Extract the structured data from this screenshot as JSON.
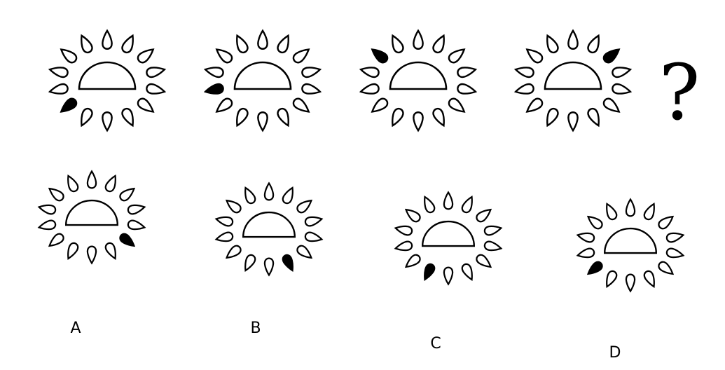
{
  "question_mark": "?",
  "colors": {
    "stroke": "#000000",
    "fill_dark": "#000000",
    "fill_light": "#ffffff"
  },
  "figure_shape": "half-circle-with-14-drops",
  "sequence": [
    {
      "highlighted": 9
    },
    {
      "highlighted": 10
    },
    {
      "highlighted": 12
    },
    {
      "highlighted": 2
    }
  ],
  "options": [
    {
      "label": "A",
      "highlighted": 5
    },
    {
      "label": "B",
      "highlighted": 6
    },
    {
      "label": "C",
      "highlighted": 8
    },
    {
      "label": "D",
      "highlighted": 9
    }
  ]
}
